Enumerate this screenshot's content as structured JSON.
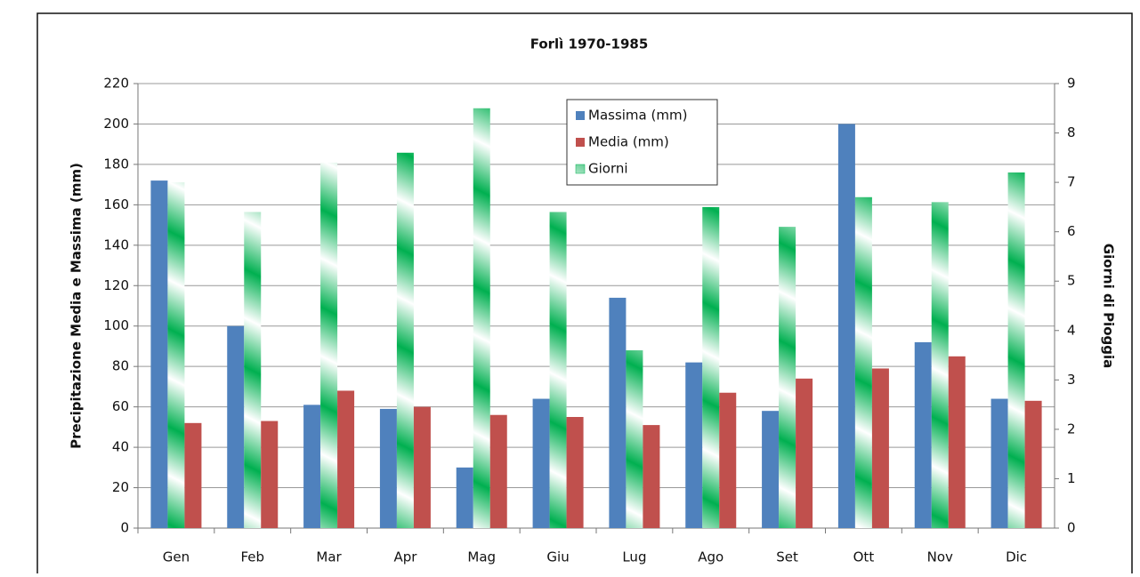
{
  "chart_data": {
    "type": "bar",
    "title": "Forlì 1970-1985",
    "y_label": "Precipitazione Media e Massima (mm)",
    "y2_label": "Giorni di Pioggia",
    "categories": [
      "Gen",
      "Feb",
      "Mar",
      "Apr",
      "Mag",
      "Giu",
      "Lug",
      "Ago",
      "Set",
      "Ott",
      "Nov",
      "Dic"
    ],
    "series": [
      {
        "name": "Massima (mm)",
        "color": "#4f81bd",
        "values": [
          172,
          100,
          61,
          59,
          30,
          64,
          114,
          82,
          58,
          200,
          92,
          64
        ]
      },
      {
        "name": "Giorni",
        "color": "#00b050",
        "axis": "y2",
        "values": [
          7.0,
          6.4,
          7.4,
          7.6,
          8.5,
          6.4,
          3.6,
          6.5,
          6.1,
          6.7,
          6.6,
          7.2
        ]
      },
      {
        "name": "Media (mm)",
        "color": "#c0504d",
        "values": [
          52,
          53,
          68,
          60,
          56,
          55,
          51,
          67,
          74,
          79,
          85,
          63
        ]
      }
    ],
    "ylim": [
      0,
      220
    ],
    "yticks": [
      0,
      20,
      40,
      60,
      80,
      100,
      120,
      140,
      160,
      180,
      200,
      220
    ],
    "y2lim": [
      0,
      9
    ],
    "y2ticks": [
      0,
      1,
      2,
      3,
      4,
      5,
      6,
      7,
      8,
      9
    ],
    "grid": true,
    "legend": "top"
  }
}
